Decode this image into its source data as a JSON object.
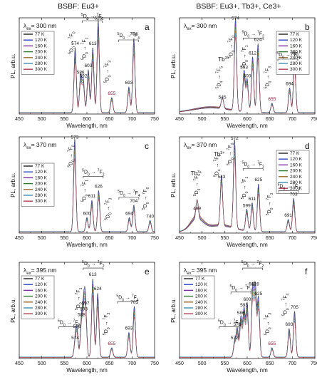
{
  "figure": {
    "col_titles": [
      "BSBF: Eu3+",
      "BSBF: Eu3+, Tb3+, Ce3+"
    ],
    "legend_labels": [
      "77 K",
      "120 K",
      "160 K",
      "200 K",
      "240 K",
      "280 K",
      "300 K"
    ],
    "legend_colors": [
      "#1f1f1f",
      "#2b45c8",
      "#7a2ca0",
      "#2f7a2f",
      "#9a6a2a",
      "#3a8fb7",
      "#b03a4e"
    ]
  },
  "chart_data": [
    {
      "type": "line",
      "panel": "a",
      "excitation": "λex= 300 nm",
      "xlabel": "Wavelength, nm",
      "ylabel": "PL, arb.u.",
      "xlim": [
        450,
        750
      ],
      "ylim": [
        0,
        1.0
      ],
      "xticks": [
        450,
        500,
        550,
        600,
        650,
        700,
        750
      ],
      "yticks": [],
      "legend": [
        "77 K",
        "120 K",
        "160 K",
        "200 K",
        "240 K",
        "280 K",
        "300 K"
      ],
      "legend_position": "top-left",
      "peaks": [
        [
          574,
          0.68
        ],
        [
          586,
          0.38
        ],
        [
          592,
          0.34
        ],
        [
          603,
          0.45
        ],
        [
          613,
          0.68
        ],
        [
          625,
          0.97
        ],
        [
          655,
          0.16
        ],
        [
          693,
          0.27
        ],
        [
          704,
          0.78
        ]
      ],
      "peak_labels": [
        "574",
        "586",
        "592",
        "603",
        "613",
        "625",
        "655",
        "693",
        "704"
      ],
      "transitions": [
        {
          "upper": "5",
          "lower": "0",
          "final": "0",
          "x": 569,
          "y": 0.74,
          "vertical": true
        },
        {
          "upper": "5",
          "lower": "0",
          "final": "1",
          "x": 598,
          "y": 0.68,
          "vertical": true
        },
        {
          "upper": "5",
          "lower": "0",
          "final": "2",
          "x": 612,
          "y": 1.0,
          "vertical": false
        },
        {
          "upper": "5",
          "lower": "0",
          "final": "3",
          "x": 648,
          "y": 0.44,
          "vertical": true
        },
        {
          "upper": "5",
          "lower": "0",
          "final": "4",
          "x": 692,
          "y": 0.8,
          "vertical": false
        }
      ],
      "tb_labels": []
    },
    {
      "type": "line",
      "panel": "b",
      "excitation": "λex= 300 nm",
      "xlabel": "Wavelength, nm",
      "ylabel": "PL, arb.u.",
      "xlim": [
        450,
        750
      ],
      "ylim": [
        0,
        1.0
      ],
      "xticks": [
        450,
        500,
        550,
        600,
        650,
        700,
        750
      ],
      "yticks": [],
      "legend": [
        "77 K",
        "120 K",
        "160 K",
        "200 K",
        "240 K",
        "280 K",
        "300 K"
      ],
      "legend_position": "top-right",
      "peaks": [
        [
          545,
          0.12
        ],
        [
          574,
          0.97
        ],
        [
          593,
          0.43
        ],
        [
          600,
          0.34
        ],
        [
          612,
          0.58
        ],
        [
          624,
          0.72
        ],
        [
          655,
          0.1
        ],
        [
          694,
          0.26
        ],
        [
          705,
          0.57
        ]
      ],
      "peak_labels": [
        "545",
        "574",
        "593",
        "600",
        "612",
        "624",
        "655",
        "694",
        "705"
      ],
      "transitions": [
        {
          "upper": "5",
          "lower": "4",
          "final": "5",
          "x": 541,
          "y": 0.38,
          "vertical": true
        },
        {
          "upper": "5",
          "lower": "0",
          "final": "0",
          "x": 568,
          "y": 0.7,
          "vertical": true
        },
        {
          "upper": "5",
          "lower": "0",
          "final": "1",
          "x": 597,
          "y": 0.6,
          "vertical": true
        },
        {
          "upper": "5",
          "lower": "0",
          "final": "2",
          "x": 613,
          "y": 0.82,
          "vertical": false
        },
        {
          "upper": "5",
          "lower": "0",
          "final": "3",
          "x": 648,
          "y": 0.38,
          "vertical": true
        },
        {
          "upper": "5",
          "lower": "0",
          "final": "4",
          "x": 690,
          "y": 0.6,
          "vertical": false
        }
      ],
      "tb_labels": [
        {
          "text": "Tb3+",
          "x": 548,
          "y": 0.55
        }
      ]
    },
    {
      "type": "line",
      "panel": "c",
      "excitation": "λex= 370 nm",
      "xlabel": "Wavelength, nm",
      "ylabel": "PL, arb.u.",
      "xlim": [
        450,
        750
      ],
      "ylim": [
        0,
        1.0
      ],
      "xticks": [
        450,
        500,
        550,
        600,
        650,
        700,
        750
      ],
      "yticks": [],
      "legend": [
        "77 K",
        "120 K",
        "160 K",
        "200 K",
        "240 K",
        "280 K",
        "300 K"
      ],
      "legend_position": "middle-left",
      "peaks": [
        [
          573,
          0.97
        ],
        [
          600,
          0.15
        ],
        [
          611,
          0.33
        ],
        [
          626,
          0.43
        ],
        [
          694,
          0.15
        ],
        [
          704,
          0.28
        ],
        [
          740,
          0.12
        ]
      ],
      "peak_labels": [
        "573",
        "600",
        "611",
        "626",
        "694",
        "704",
        "740"
      ],
      "transitions": [
        {
          "upper": "5",
          "lower": "0",
          "final": "0",
          "x": 568,
          "y": 0.8,
          "vertical": true
        },
        {
          "upper": "5",
          "lower": "0",
          "final": "1",
          "x": 598,
          "y": 0.44,
          "vertical": true
        },
        {
          "upper": "5",
          "lower": "0",
          "final": "2",
          "x": 614,
          "y": 0.62,
          "vertical": false
        },
        {
          "upper": "5",
          "lower": "0",
          "final": "3",
          "x": 650,
          "y": 0.25,
          "vertical": true
        },
        {
          "upper": "5",
          "lower": "0",
          "final": "4",
          "x": 693,
          "y": 0.4,
          "vertical": false
        },
        {
          "upper": "5",
          "lower": "0",
          "final": "6",
          "x": 733,
          "y": 0.36,
          "vertical": true
        }
      ],
      "tb_labels": []
    },
    {
      "type": "line",
      "panel": "d",
      "excitation": "λex= 370 nm",
      "xlabel": "Wavelength, nm",
      "ylabel": "PL, arb.u.",
      "xlim": [
        450,
        750
      ],
      "ylim": [
        0,
        1.0
      ],
      "xticks": [
        450,
        500,
        550,
        600,
        650,
        700,
        750
      ],
      "yticks": [],
      "legend": [
        "77 K",
        "120 K",
        "160 K",
        "200 K",
        "240 K",
        "280 K",
        "300 K"
      ],
      "legend_position": "top-right",
      "peaks": [
        [
          489,
          0.2
        ],
        [
          543,
          0.53
        ],
        [
          572,
          0.93
        ],
        [
          599,
          0.23
        ],
        [
          611,
          0.3
        ],
        [
          625,
          0.5
        ],
        [
          691,
          0.13
        ],
        [
          703,
          0.35
        ]
      ],
      "peak_labels": [
        "489",
        "543",
        "572",
        "599",
        "611",
        "625",
        "691",
        "703"
      ],
      "transitions": [
        {
          "upper": "5",
          "lower": "4",
          "final": "6",
          "x": 491,
          "y": 0.5,
          "vertical": true
        },
        {
          "upper": "5",
          "lower": "4",
          "final": "5",
          "x": 536,
          "y": 0.7,
          "vertical": true
        },
        {
          "upper": "5",
          "lower": "0",
          "final": "0",
          "x": 565,
          "y": 0.82,
          "vertical": true
        },
        {
          "upper": "5",
          "lower": "0",
          "final": "1",
          "x": 597,
          "y": 0.47,
          "vertical": true
        },
        {
          "upper": "5",
          "lower": "0",
          "final": "2",
          "x": 613,
          "y": 0.7,
          "vertical": false
        },
        {
          "upper": "5",
          "lower": "0",
          "final": "3",
          "x": 652,
          "y": 0.3,
          "vertical": true
        },
        {
          "upper": "5",
          "lower": "0",
          "final": "4",
          "x": 692,
          "y": 0.47,
          "vertical": false
        }
      ],
      "tb_labels": [
        {
          "text": "Tb3+",
          "x": 487,
          "y": 0.6
        },
        {
          "text": "Tb3+",
          "x": 538,
          "y": 0.8
        }
      ]
    },
    {
      "type": "line",
      "panel": "e",
      "excitation": "λex= 395 nm",
      "xlabel": "Wavelength, nm",
      "ylabel": "PL, arb.u.",
      "xlim": [
        450,
        750
      ],
      "ylim": [
        0,
        1.0
      ],
      "xticks": [
        450,
        500,
        550,
        600,
        650,
        700,
        750
      ],
      "yticks": [],
      "legend": [
        "77 K",
        "120 K",
        "160 K",
        "200 K",
        "240 K",
        "280 K",
        "300 K"
      ],
      "legend_position": "top-left",
      "peaks": [
        [
          574,
          0.16
        ],
        [
          578,
          0.28
        ],
        [
          588,
          0.4
        ],
        [
          593,
          0.46
        ],
        [
          597,
          0.52
        ],
        [
          613,
          0.82
        ],
        [
          624,
          0.67
        ],
        [
          655,
          0.1
        ],
        [
          693,
          0.26
        ],
        [
          705,
          0.53
        ]
      ],
      "peak_labels": [
        "574",
        "578",
        "588",
        "593",
        "597",
        "613",
        "624",
        "655",
        "693",
        "705"
      ],
      "transitions": [
        {
          "upper": "5",
          "lower": "0",
          "final": "0",
          "x": 560,
          "y": 0.36,
          "vertical": false
        },
        {
          "upper": "5",
          "lower": "0",
          "final": "1",
          "x": 584,
          "y": 0.62,
          "vertical": true
        },
        {
          "upper": "5",
          "lower": "0",
          "final": "2",
          "x": 614,
          "y": 0.97,
          "vertical": false
        },
        {
          "upper": "5",
          "lower": "0",
          "final": "3",
          "x": 646,
          "y": 0.36,
          "vertical": true
        },
        {
          "upper": "5",
          "lower": "0",
          "final": "4",
          "x": 690,
          "y": 0.62,
          "vertical": false
        }
      ],
      "tb_labels": []
    },
    {
      "type": "line",
      "panel": "f",
      "excitation": "λex= 395 nm",
      "xlabel": "Wavelength, nm",
      "ylabel": "PL, arb.u.",
      "xlim": [
        450,
        750
      ],
      "ylim": [
        0,
        1.0
      ],
      "xticks": [
        450,
        500,
        550,
        600,
        650,
        700,
        750
      ],
      "yticks": [],
      "legend": [
        "77 K",
        "120 K",
        "160 K",
        "200 K",
        "240 K",
        "280 K",
        "300 K"
      ],
      "legend_position": "top-left",
      "peaks": [
        [
          572,
          0.16
        ],
        [
          578,
          0.3
        ],
        [
          586,
          0.42
        ],
        [
          593,
          0.5
        ],
        [
          600,
          0.56
        ],
        [
          612,
          0.72
        ],
        [
          618,
          0.72
        ],
        [
          625,
          0.62
        ],
        [
          655,
          0.1
        ],
        [
          693,
          0.3
        ],
        [
          705,
          0.48
        ]
      ],
      "peak_labels": [
        "572",
        "578",
        "586",
        "593",
        "600",
        "612",
        "618",
        "625",
        "655",
        "693",
        "705"
      ],
      "transitions": [
        {
          "upper": "5",
          "lower": "0",
          "final": "0",
          "x": 560,
          "y": 0.36,
          "vertical": false
        },
        {
          "upper": "5",
          "lower": "0",
          "final": "1",
          "x": 586,
          "y": 0.72,
          "vertical": false
        },
        {
          "upper": "5",
          "lower": "0",
          "final": "2",
          "x": 612,
          "y": 0.97,
          "vertical": false
        },
        {
          "upper": "5",
          "lower": "0",
          "final": "3",
          "x": 648,
          "y": 0.36,
          "vertical": true
        },
        {
          "upper": "5",
          "lower": "0",
          "final": "4",
          "x": 688,
          "y": 0.56,
          "vertical": true
        }
      ],
      "tb_labels": []
    }
  ]
}
